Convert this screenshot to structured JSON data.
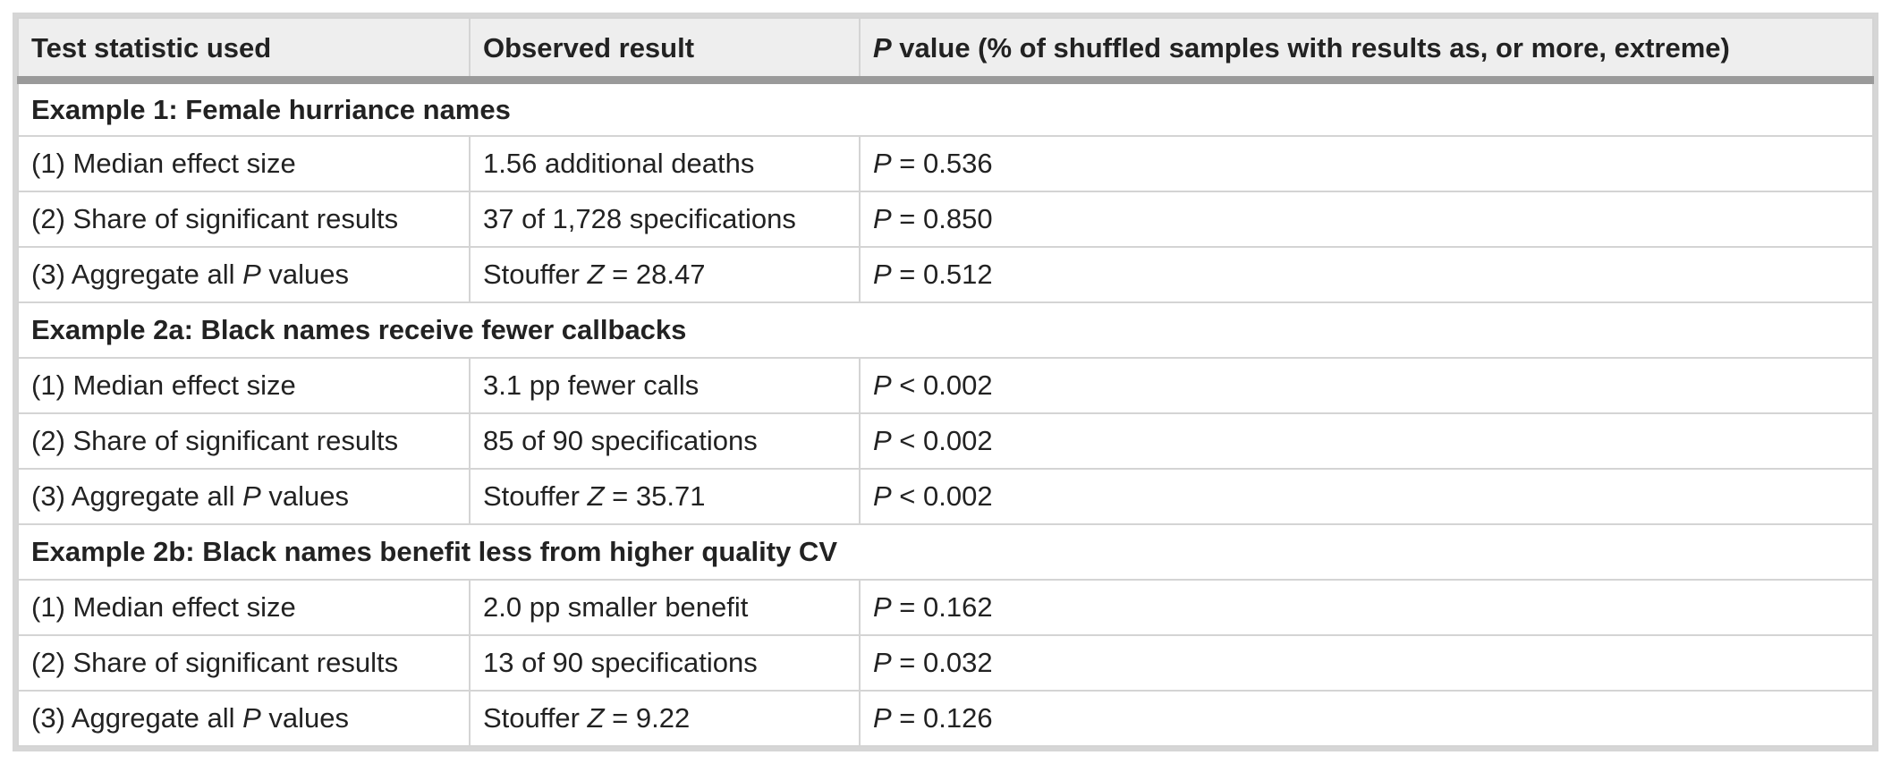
{
  "headers": {
    "test_statistic": "Test statistic used",
    "observed_result": "Observed result",
    "p_value_prefix": "P",
    "p_value_rest": " value (% of shuffled samples with results as, or more, extreme)"
  },
  "sections": [
    {
      "title": "Example 1: Female hurriance names",
      "rows": [
        {
          "stat_pre": "(1) Median effect size",
          "stat_sym": "",
          "stat_post": "",
          "obs_pre": "1.56 additional deaths",
          "obs_sym": "",
          "obs_post": "",
          "p_sym": "P",
          "p_val": " = 0.536"
        },
        {
          "stat_pre": "(2) Share of significant results",
          "stat_sym": "",
          "stat_post": "",
          "obs_pre": "37 of 1,728 specifications",
          "obs_sym": "",
          "obs_post": "",
          "p_sym": "P",
          "p_val": " = 0.850"
        },
        {
          "stat_pre": "(3) Aggregate all ",
          "stat_sym": "P",
          "stat_post": " values",
          "obs_pre": "Stouffer ",
          "obs_sym": "Z",
          "obs_post": " = 28.47",
          "p_sym": "P",
          "p_val": " = 0.512"
        }
      ]
    },
    {
      "title": "Example 2a: Black names receive fewer callbacks",
      "rows": [
        {
          "stat_pre": "(1) Median effect size",
          "stat_sym": "",
          "stat_post": "",
          "obs_pre": "3.1 pp fewer calls",
          "obs_sym": "",
          "obs_post": "",
          "p_sym": "P",
          "p_val": " < 0.002"
        },
        {
          "stat_pre": "(2) Share of significant results",
          "stat_sym": "",
          "stat_post": "",
          "obs_pre": "85 of 90 specifications",
          "obs_sym": "",
          "obs_post": "",
          "p_sym": "P",
          "p_val": " < 0.002"
        },
        {
          "stat_pre": "(3) Aggregate all ",
          "stat_sym": "P",
          "stat_post": " values",
          "obs_pre": "Stouffer ",
          "obs_sym": "Z",
          "obs_post": " = 35.71",
          "p_sym": "P",
          "p_val": " < 0.002"
        }
      ]
    },
    {
      "title": "Example 2b: Black names benefit less from higher quality CV",
      "rows": [
        {
          "stat_pre": "(1) Median effect size",
          "stat_sym": "",
          "stat_post": "",
          "obs_pre": "2.0 pp smaller benefit",
          "obs_sym": "",
          "obs_post": "",
          "p_sym": "P",
          "p_val": " = 0.162"
        },
        {
          "stat_pre": "(2) Share of significant results",
          "stat_sym": "",
          "stat_post": "",
          "obs_pre": "13 of 90 specifications",
          "obs_sym": "",
          "obs_post": "",
          "p_sym": "P",
          "p_val": " = 0.032"
        },
        {
          "stat_pre": "(3) Aggregate all ",
          "stat_sym": "P",
          "stat_post": " values",
          "obs_pre": "Stouffer ",
          "obs_sym": "Z",
          "obs_post": " = 9.22",
          "p_sym": "P",
          "p_val": " = 0.126"
        }
      ]
    }
  ]
}
